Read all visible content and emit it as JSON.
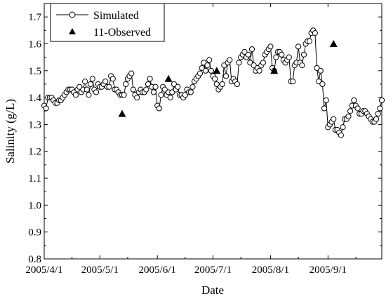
{
  "chart_data": {
    "type": "line",
    "title": "",
    "xlabel": "Date",
    "ylabel": "Salinity (g/L)",
    "x_tick_labels": [
      "2005/4/1",
      "2005/5/1",
      "2005/6/1",
      "2005/7/1",
      "2005/8/1",
      "2005/9/1"
    ],
    "x_tick_dates": [
      "2005-04-01",
      "2005-05-01",
      "2005-06-01",
      "2005-07-01",
      "2005-08-01",
      "2005-09-01"
    ],
    "xlim": [
      "2005-04-01",
      "2005-09-30"
    ],
    "ylim": [
      0.8,
      1.75
    ],
    "y_ticks": [
      "0.8",
      "0.9",
      "1.0",
      "1.1",
      "1.2",
      "1.3",
      "1.4",
      "1.5",
      "1.6",
      "1.7"
    ],
    "grid": false,
    "legend_position": "top-left",
    "series": [
      {
        "name": "Simulated",
        "marker": "open-circle",
        "color": "#000000",
        "x": [
          "2005-04-01",
          "2005-04-02",
          "2005-04-03",
          "2005-04-04",
          "2005-04-05",
          "2005-04-06",
          "2005-04-07",
          "2005-04-08",
          "2005-04-09",
          "2005-04-10",
          "2005-04-11",
          "2005-04-12",
          "2005-04-13",
          "2005-04-14",
          "2005-04-15",
          "2005-04-16",
          "2005-04-17",
          "2005-04-18",
          "2005-04-19",
          "2005-04-20",
          "2005-04-21",
          "2005-04-22",
          "2005-04-23",
          "2005-04-24",
          "2005-04-25",
          "2005-04-26",
          "2005-04-27",
          "2005-04-28",
          "2005-04-29",
          "2005-04-30",
          "2005-05-01",
          "2005-05-02",
          "2005-05-03",
          "2005-05-04",
          "2005-05-05",
          "2005-05-06",
          "2005-05-07",
          "2005-05-08",
          "2005-05-09",
          "2005-05-10",
          "2005-05-11",
          "2005-05-12",
          "2005-05-13",
          "2005-05-14",
          "2005-05-15",
          "2005-05-16",
          "2005-05-17",
          "2005-05-18",
          "2005-05-19",
          "2005-05-20",
          "2005-05-21",
          "2005-05-22",
          "2005-05-23",
          "2005-05-24",
          "2005-05-25",
          "2005-05-26",
          "2005-05-27",
          "2005-05-28",
          "2005-05-29",
          "2005-05-30",
          "2005-05-31",
          "2005-06-01",
          "2005-06-02",
          "2005-06-03",
          "2005-06-04",
          "2005-06-05",
          "2005-06-06",
          "2005-06-07",
          "2005-06-08",
          "2005-06-09",
          "2005-06-10",
          "2005-06-11",
          "2005-06-12",
          "2005-06-13",
          "2005-06-14",
          "2005-06-15",
          "2005-06-16",
          "2005-06-17",
          "2005-06-18",
          "2005-06-19",
          "2005-06-20",
          "2005-06-21",
          "2005-06-22",
          "2005-06-23",
          "2005-06-24",
          "2005-06-25",
          "2005-06-26",
          "2005-06-27",
          "2005-06-28",
          "2005-06-29",
          "2005-06-30",
          "2005-07-01",
          "2005-07-02",
          "2005-07-03",
          "2005-07-04",
          "2005-07-05",
          "2005-07-06",
          "2005-07-07",
          "2005-07-08",
          "2005-07-09",
          "2005-07-10",
          "2005-07-11",
          "2005-07-12",
          "2005-07-13",
          "2005-07-14",
          "2005-07-15",
          "2005-07-16",
          "2005-07-17",
          "2005-07-18",
          "2005-07-19",
          "2005-07-20",
          "2005-07-21",
          "2005-07-22",
          "2005-07-23",
          "2005-07-24",
          "2005-07-25",
          "2005-07-26",
          "2005-07-27",
          "2005-07-28",
          "2005-07-29",
          "2005-07-30",
          "2005-07-31",
          "2005-08-01",
          "2005-08-02",
          "2005-08-03",
          "2005-08-04",
          "2005-08-05",
          "2005-08-06",
          "2005-08-07",
          "2005-08-08",
          "2005-08-09",
          "2005-08-10",
          "2005-08-11",
          "2005-08-12",
          "2005-08-13",
          "2005-08-14",
          "2005-08-15",
          "2005-08-16",
          "2005-08-17",
          "2005-08-18",
          "2005-08-19",
          "2005-08-20",
          "2005-08-21",
          "2005-08-22",
          "2005-08-23",
          "2005-08-24",
          "2005-08-25",
          "2005-08-26",
          "2005-08-27",
          "2005-08-28",
          "2005-08-29",
          "2005-08-30",
          "2005-08-31",
          "2005-09-01",
          "2005-09-02",
          "2005-09-03",
          "2005-09-04",
          "2005-09-05",
          "2005-09-06",
          "2005-09-07",
          "2005-09-08",
          "2005-09-09",
          "2005-09-10",
          "2005-09-11",
          "2005-09-12",
          "2005-09-13",
          "2005-09-14",
          "2005-09-15",
          "2005-09-16",
          "2005-09-17",
          "2005-09-18",
          "2005-09-19",
          "2005-09-20",
          "2005-09-21",
          "2005-09-22",
          "2005-09-23",
          "2005-09-24",
          "2005-09-25",
          "2005-09-26",
          "2005-09-27",
          "2005-09-28",
          "2005-09-29",
          "2005-09-30"
        ],
        "y": [
          1.37,
          1.36,
          1.4,
          1.4,
          1.4,
          1.39,
          1.38,
          1.38,
          1.39,
          1.39,
          1.4,
          1.41,
          1.42,
          1.43,
          1.43,
          1.43,
          1.42,
          1.41,
          1.43,
          1.44,
          1.42,
          1.43,
          1.46,
          1.43,
          1.41,
          1.45,
          1.47,
          1.43,
          1.42,
          1.45,
          1.44,
          1.44,
          1.45,
          1.46,
          1.44,
          1.44,
          1.48,
          1.47,
          1.43,
          1.43,
          1.42,
          1.41,
          1.41,
          1.41,
          1.45,
          1.47,
          1.48,
          1.49,
          1.43,
          1.41,
          1.4,
          1.42,
          1.43,
          1.42,
          1.42,
          1.43,
          1.45,
          1.47,
          1.44,
          1.42,
          1.44,
          1.37,
          1.36,
          1.41,
          1.44,
          1.43,
          1.41,
          1.42,
          1.4,
          1.42,
          1.45,
          1.43,
          1.44,
          1.41,
          1.41,
          1.4,
          1.41,
          1.43,
          1.42,
          1.42,
          1.44,
          1.46,
          1.47,
          1.48,
          1.49,
          1.51,
          1.53,
          1.5,
          1.52,
          1.54,
          1.5,
          1.48,
          1.47,
          1.45,
          1.43,
          1.44,
          1.45,
          1.52,
          1.48,
          1.53,
          1.54,
          1.46,
          1.47,
          1.46,
          1.45,
          1.53,
          1.55,
          1.56,
          1.57,
          1.55,
          1.56,
          1.53,
          1.58,
          1.52,
          1.5,
          1.51,
          1.5,
          1.52,
          1.53,
          1.56,
          1.57,
          1.58,
          1.59,
          1.51,
          1.5,
          1.55,
          1.57,
          1.57,
          1.56,
          1.54,
          1.53,
          1.54,
          1.55,
          1.46,
          1.46,
          1.52,
          1.53,
          1.59,
          1.53,
          1.52,
          1.56,
          1.6,
          1.61,
          1.61,
          1.64,
          1.65,
          1.64,
          1.51,
          1.46,
          1.5,
          1.45,
          1.36,
          1.39,
          1.29,
          1.3,
          1.31,
          1.32,
          1.28,
          1.28,
          1.27,
          1.26,
          1.29,
          1.32,
          1.32,
          1.33,
          1.35,
          1.37,
          1.39,
          1.37,
          1.36,
          1.34,
          1.34,
          1.35,
          1.35,
          1.34,
          1.33,
          1.32,
          1.31,
          1.31,
          1.32,
          1.34,
          1.36,
          1.39
        ]
      },
      {
        "name": "11-Observed",
        "marker": "filled-triangle",
        "color": "#000000",
        "x": [
          "2005-05-13",
          "2005-06-07",
          "2005-07-03",
          "2005-08-03",
          "2005-09-04"
        ],
        "y": [
          1.34,
          1.47,
          1.5,
          1.5,
          1.6
        ]
      }
    ]
  }
}
